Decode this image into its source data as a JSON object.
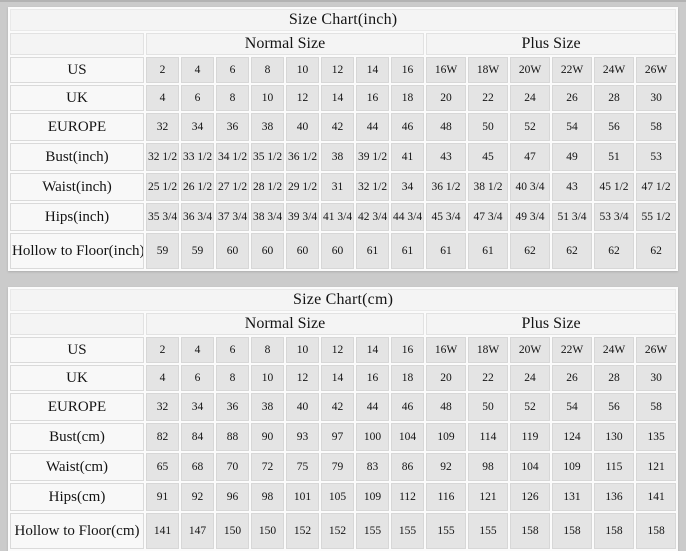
{
  "tables": [
    {
      "title": "Size Chart(inch)",
      "group_headers": {
        "normal": "Normal Size",
        "plus": "Plus Size"
      },
      "rows": [
        {
          "label": "US",
          "values": [
            "2",
            "4",
            "6",
            "8",
            "10",
            "12",
            "14",
            "16",
            "16W",
            "18W",
            "20W",
            "22W",
            "24W",
            "26W"
          ]
        },
        {
          "label": "UK",
          "values": [
            "4",
            "6",
            "8",
            "10",
            "12",
            "14",
            "16",
            "18",
            "20",
            "22",
            "24",
            "26",
            "28",
            "30"
          ]
        },
        {
          "label": "EUROPE",
          "values": [
            "32",
            "34",
            "36",
            "38",
            "40",
            "42",
            "44",
            "46",
            "48",
            "50",
            "52",
            "54",
            "56",
            "58"
          ]
        },
        {
          "label": "Bust(inch)",
          "values": [
            "32 1/2",
            "33 1/2",
            "34 1/2",
            "35 1/2",
            "36 1/2",
            "38",
            "39 1/2",
            "41",
            "43",
            "45",
            "47",
            "49",
            "51",
            "53"
          ]
        },
        {
          "label": "Waist(inch)",
          "values": [
            "25 1/2",
            "26 1/2",
            "27 1/2",
            "28 1/2",
            "29 1/2",
            "31",
            "32 1/2",
            "34",
            "36 1/2",
            "38 1/2",
            "40 3/4",
            "43",
            "45 1/2",
            "47 1/2"
          ]
        },
        {
          "label": "Hips(inch)",
          "values": [
            "35 3/4",
            "36 3/4",
            "37 3/4",
            "38 3/4",
            "39 3/4",
            "41 3/4",
            "42 3/4",
            "44 3/4",
            "45 3/4",
            "47 3/4",
            "49 3/4",
            "51 3/4",
            "53 3/4",
            "55 1/2"
          ]
        },
        {
          "label": "Hollow to Floor(inch)",
          "values": [
            "59",
            "59",
            "60",
            "60",
            "60",
            "60",
            "61",
            "61",
            "61",
            "61",
            "62",
            "62",
            "62",
            "62"
          ]
        }
      ]
    },
    {
      "title": "Size Chart(cm)",
      "group_headers": {
        "normal": "Normal Size",
        "plus": "Plus Size"
      },
      "rows": [
        {
          "label": "US",
          "values": [
            "2",
            "4",
            "6",
            "8",
            "10",
            "12",
            "14",
            "16",
            "16W",
            "18W",
            "20W",
            "22W",
            "24W",
            "26W"
          ]
        },
        {
          "label": "UK",
          "values": [
            "4",
            "6",
            "8",
            "10",
            "12",
            "14",
            "16",
            "18",
            "20",
            "22",
            "24",
            "26",
            "28",
            "30"
          ]
        },
        {
          "label": "EUROPE",
          "values": [
            "32",
            "34",
            "36",
            "38",
            "40",
            "42",
            "44",
            "46",
            "48",
            "50",
            "52",
            "54",
            "56",
            "58"
          ]
        },
        {
          "label": "Bust(cm)",
          "values": [
            "82",
            "84",
            "88",
            "90",
            "93",
            "97",
            "100",
            "104",
            "109",
            "114",
            "119",
            "124",
            "130",
            "135"
          ]
        },
        {
          "label": "Waist(cm)",
          "values": [
            "65",
            "68",
            "70",
            "72",
            "75",
            "79",
            "83",
            "86",
            "92",
            "98",
            "104",
            "109",
            "115",
            "121"
          ]
        },
        {
          "label": "Hips(cm)",
          "values": [
            "91",
            "92",
            "96",
            "98",
            "101",
            "105",
            "109",
            "112",
            "116",
            "121",
            "126",
            "131",
            "136",
            "141"
          ]
        },
        {
          "label": "Hollow to Floor(cm)",
          "values": [
            "141",
            "147",
            "150",
            "150",
            "152",
            "152",
            "155",
            "155",
            "155",
            "155",
            "158",
            "158",
            "158",
            "158"
          ]
        }
      ]
    }
  ]
}
